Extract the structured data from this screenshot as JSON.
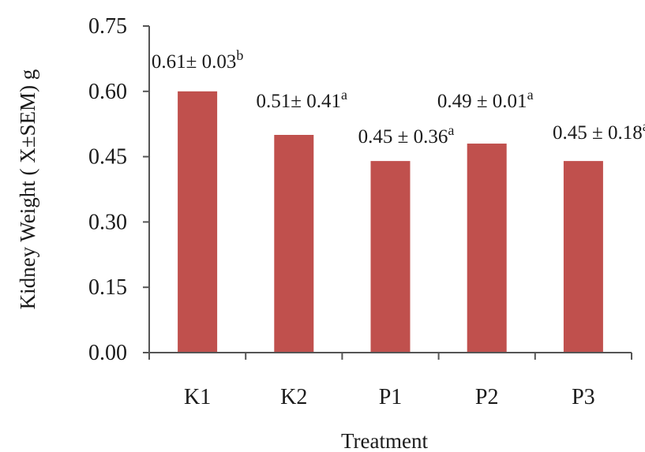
{
  "chart_data": {
    "type": "bar",
    "title": "",
    "xlabel": "Treatment",
    "ylabel": "Kidney Weight ( X±SEM) g",
    "categories": [
      "K1",
      "K2",
      "P1",
      "P2",
      "P3"
    ],
    "values": [
      0.6,
      0.5,
      0.44,
      0.48,
      0.44
    ],
    "ylim": [
      0,
      0.75
    ],
    "yticks": [
      "0.00",
      "0.15",
      "0.30",
      "0.45",
      "0.60",
      "0.75"
    ],
    "data_labels": [
      {
        "text": "0.61± 0.03",
        "sup": "b"
      },
      {
        "text": "0.51± 0.41",
        "sup": "a"
      },
      {
        "text": "0.45 ± 0.36",
        "sup": "a"
      },
      {
        "text": "0.49 ± 0.01",
        "sup": "a"
      },
      {
        "text": "0.45 ± 0.18",
        "sup": "a"
      }
    ],
    "bar_color": "#c0504d",
    "grid": false,
    "legend": "none"
  }
}
